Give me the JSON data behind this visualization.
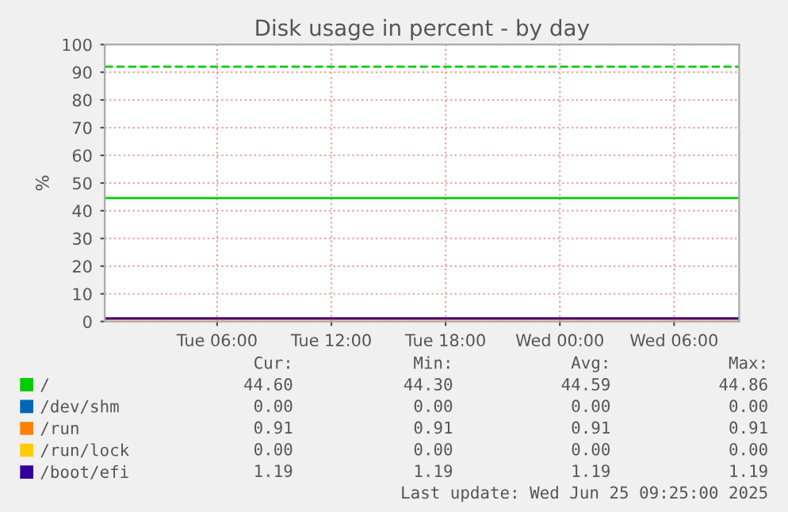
{
  "chart_data": {
    "type": "line",
    "title": "Disk usage in percent - by day",
    "ylabel": "%",
    "xlim": [
      "2025-06-24T00:06",
      "2025-06-25T09:25"
    ],
    "ylim": [
      0,
      100
    ],
    "xticks": [
      {
        "value": "2025-06-24T06:00",
        "label": "Tue 06:00"
      },
      {
        "value": "2025-06-24T12:00",
        "label": "Tue 12:00"
      },
      {
        "value": "2025-06-24T18:00",
        "label": "Tue 18:00"
      },
      {
        "value": "2025-06-25T00:00",
        "label": "Wed 00:00"
      },
      {
        "value": "2025-06-25T06:00",
        "label": "Wed 06:00"
      }
    ],
    "yticks": [
      0,
      10,
      20,
      30,
      40,
      50,
      60,
      70,
      80,
      90,
      100
    ],
    "grid": true,
    "legend": "bottom",
    "marker": "none",
    "line_style": "solid",
    "x": [
      "2025-06-24T00:06",
      "2025-06-25T09:25"
    ],
    "series": [
      {
        "name": "/",
        "color": "#00cc00",
        "values": [
          44.6,
          44.6
        ]
      },
      {
        "name": "/dev/shm",
        "color": "#0066b3",
        "values": [
          null,
          null
        ]
      },
      {
        "name": "/run",
        "color": "#ff8000",
        "values": [
          0.91,
          0.91
        ]
      },
      {
        "name": "/run/lock",
        "color": "#ffcc00",
        "values": [
          null,
          null
        ]
      },
      {
        "name": "/boot/efi",
        "color": "#330099",
        "values": [
          1.19,
          1.19
        ]
      }
    ],
    "ref_lines": [
      {
        "axis": "y",
        "value": 92,
        "label": null,
        "color": "#00cc00",
        "line_style": "dashed"
      }
    ],
    "annotations": [
      "Cur:",
      "Min:",
      "Avg:",
      "Max:",
      "44.60",
      "44.30",
      "44.59",
      "44.86",
      "0.00",
      "0.00",
      "0.00",
      "0.00",
      "0.91",
      "0.91",
      "0.91",
      "0.91",
      "0.00",
      "0.00",
      "0.00",
      "0.00",
      "1.19",
      "1.19",
      "1.19",
      "1.19",
      "Last update: Wed Jun 25 09:25:00 2025"
    ]
  }
}
